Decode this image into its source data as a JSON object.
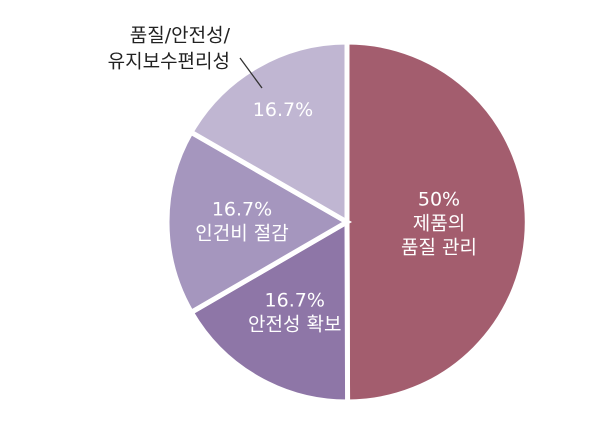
{
  "chart_data": {
    "type": "pie",
    "title": "",
    "start_angle_deg": 0,
    "direction": "clockwise",
    "slices": [
      {
        "lines": [
          "50%",
          "제품의",
          "품질 관리"
        ],
        "value": 50,
        "color": "#a35d6e",
        "label_color": "#ffffff"
      },
      {
        "lines": [
          "16.7%",
          "안전성 확보"
        ],
        "value": 16.7,
        "color": "#8e76a7",
        "label_color": "#ffffff"
      },
      {
        "lines": [
          "16.7%",
          "인건비 절감"
        ],
        "value": 16.7,
        "color": "#a596be",
        "label_color": "#ffffff"
      },
      {
        "lines": [
          "16.7%"
        ],
        "value": 16.7,
        "color": "#c0b6d2",
        "label_color": "#333333",
        "outside_lines": [
          "품질/안전성/",
          "유지보수편리성"
        ]
      }
    ]
  }
}
